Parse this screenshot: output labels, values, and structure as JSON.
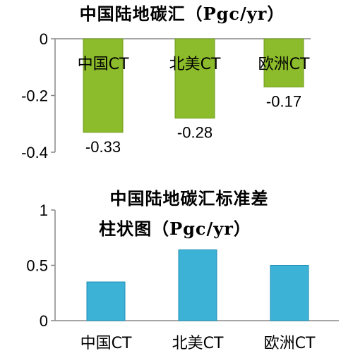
{
  "chart_data": [
    {
      "type": "bar",
      "title": "中国陆地碳汇（Pgc/yr）",
      "categories": [
        "中国CT",
        "北美CT",
        "欧洲CT"
      ],
      "values": [
        -0.33,
        -0.28,
        -0.17
      ],
      "value_labels": [
        "-0.33",
        "-0.28",
        "-0.17"
      ],
      "ylim": [
        -0.4,
        0
      ],
      "yticks": [
        0,
        -0.2,
        -0.4
      ],
      "ytick_labels": [
        "0",
        "-0.2",
        "-0.4"
      ],
      "bar_color": "#8cbc2c",
      "bar_edge_color": "#6f9a1c",
      "grid": false
    },
    {
      "type": "bar",
      "title_lines": [
        "中国陆地碳汇标准差",
        "柱状图（Pgc/yr）"
      ],
      "categories": [
        "中国CT",
        "北美CT",
        "欧洲CT"
      ],
      "values": [
        0.35,
        0.64,
        0.5
      ],
      "ylim": [
        0,
        1
      ],
      "yticks": [
        0,
        0.5,
        1
      ],
      "ytick_labels": [
        "0",
        "0.5",
        "1"
      ],
      "bar_color": "#3cb2d6",
      "bar_edge_color": "#1f8fb4",
      "grid": false
    }
  ]
}
